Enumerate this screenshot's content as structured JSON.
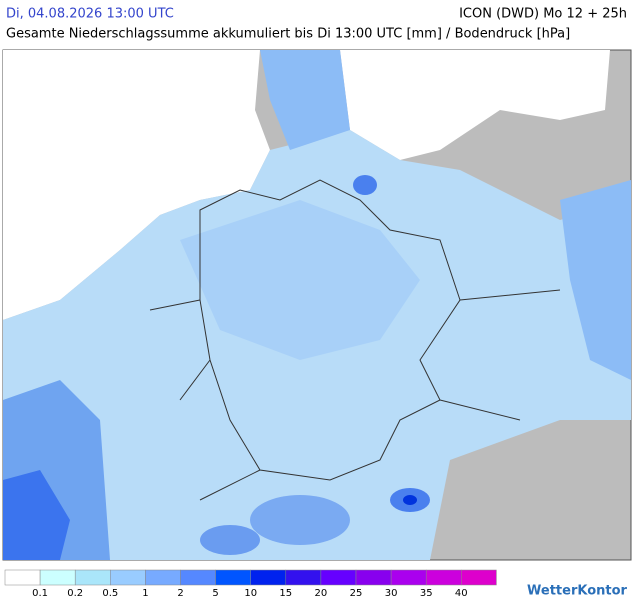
{
  "header": {
    "datetime": "Di, 04.08.2026 13:00 UTC",
    "model": "ICON (DWD) Mo 12 + 25h",
    "subtitle": "Gesamte Niederschlagssumme akkumuliert bis Di 13:00 UTC [mm] / Bodendruck [hPa]"
  },
  "legend": {
    "colors": [
      "#ffffff",
      "#ccffff",
      "#aae6fa",
      "#99ccff",
      "#77aaff",
      "#5588ff",
      "#0055ff",
      "#0022ee",
      "#3311ee",
      "#6600ff",
      "#8800ee",
      "#aa00ee",
      "#cc00dd",
      "#dd00cc"
    ],
    "labels": [
      "0.1",
      "0.2",
      "0.5",
      "1",
      "2",
      "5",
      "10",
      "15",
      "20",
      "25",
      "30",
      "35",
      "40"
    ]
  },
  "logo": "WetterKontor"
}
